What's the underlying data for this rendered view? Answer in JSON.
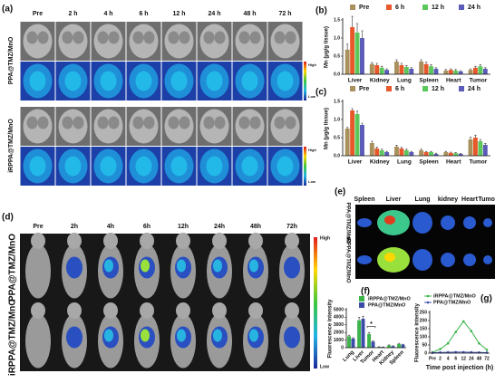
{
  "panel_a": {
    "label": "(a)",
    "columns": [
      "Pre",
      "2 h",
      "4 h",
      "6 h",
      "12 h",
      "24 h",
      "48 h",
      "72 h"
    ],
    "rows": [
      "PPA@TMZ/MnO",
      "iRPPA@TMZ/MnO"
    ],
    "scale_high": "High",
    "scale_low": "Low"
  },
  "panel_d": {
    "label": "(d)",
    "columns": [
      "Pre",
      "2h",
      "4h",
      "6h",
      "12h",
      "24h",
      "48h",
      "72h"
    ],
    "rows": [
      "PPA@TMZ/MnO",
      "iRPPA@TMZ/MnO"
    ],
    "scale_high": "High",
    "scale_low": "Low"
  },
  "panel_e": {
    "label": "(e)",
    "organs": [
      "Spleen",
      "Liver",
      "Lung",
      "kidney",
      "Heart",
      "Tumor"
    ],
    "rows": [
      "PPA@TMZ/MnO",
      "iRPPA@TMZ/MnO"
    ]
  },
  "chart_data": [
    {
      "type": "bar",
      "label": "(b)",
      "y_label": "Mn (μg/g tissue)",
      "legend": "top",
      "categories": [
        "Liver",
        "Kidney",
        "Lung",
        "Spleen",
        "Heart",
        "Tumor"
      ],
      "series": [
        {
          "name": "Pre",
          "color": "#a8915c",
          "values": [
            0.68,
            0.28,
            0.35,
            0.35,
            0.1,
            0.12
          ],
          "errors": [
            0.15,
            0.04,
            0.05,
            0.05,
            0.03,
            0.03
          ]
        },
        {
          "name": "6 h",
          "color": "#e8582a",
          "values": [
            1.3,
            0.25,
            0.25,
            0.28,
            0.12,
            0.18
          ],
          "errors": [
            0.3,
            0.05,
            0.05,
            0.05,
            0.03,
            0.04
          ]
        },
        {
          "name": "12 h",
          "color": "#5cc85c",
          "values": [
            1.15,
            0.18,
            0.2,
            0.22,
            0.1,
            0.22
          ],
          "errors": [
            0.25,
            0.04,
            0.04,
            0.04,
            0.03,
            0.04
          ]
        },
        {
          "name": "24 h",
          "color": "#5b5bb8",
          "values": [
            1.0,
            0.12,
            0.15,
            0.15,
            0.08,
            0.15
          ],
          "errors": [
            0.2,
            0.03,
            0.03,
            0.03,
            0.02,
            0.03
          ]
        }
      ],
      "ylim": [
        0,
        1.5
      ],
      "yticks": [
        {
          "value": 0,
          "label": "0.0"
        },
        0.5,
        {
          "value": 1,
          "label": "1.0"
        },
        1.5
      ]
    },
    {
      "type": "bar",
      "label": "(c)",
      "y_label": "Mn (μg/g tissue)",
      "legend": "top",
      "categories": [
        "Liver",
        "Kidney",
        "Lung",
        "Spleen",
        "Heart",
        "Tumor"
      ],
      "series": [
        {
          "name": "Pre",
          "color": "#a8915c",
          "values": [
            0.75,
            0.35,
            0.25,
            0.15,
            0.1,
            0.45
          ],
          "errors": [
            0.03,
            0.05,
            0.04,
            0.03,
            0.02,
            0.06
          ]
        },
        {
          "name": "6 h",
          "color": "#e8582a",
          "values": [
            1.25,
            0.2,
            0.2,
            0.1,
            0.08,
            0.5
          ],
          "errors": [
            0.05,
            0.04,
            0.03,
            0.02,
            0.02,
            0.07
          ]
        },
        {
          "name": "12 h",
          "color": "#5cc85c",
          "values": [
            1.15,
            0.15,
            0.15,
            0.1,
            0.07,
            0.4
          ],
          "errors": [
            0.08,
            0.03,
            0.03,
            0.02,
            0.02,
            0.05
          ]
        },
        {
          "name": "24 h",
          "color": "#5b5bb8",
          "values": [
            0.85,
            0.1,
            0.1,
            0.05,
            0.05,
            0.3
          ],
          "errors": [
            0.05,
            0.02,
            0.02,
            0.02,
            0.01,
            0.04
          ]
        }
      ],
      "ylim": [
        0,
        1.5
      ],
      "yticks": [
        {
          "value": 0,
          "label": "0.0"
        },
        0.5,
        {
          "value": 1,
          "label": "1.0"
        },
        1.5
      ]
    },
    {
      "type": "bar",
      "label": "(f)",
      "y_label": "Fluorescence intensity",
      "legend": "upper left",
      "categories": [
        "Lung",
        "Liver",
        "Tumor",
        "Heart",
        "Kidney",
        "Spleen"
      ],
      "series": [
        {
          "name": "iRPPA@TMZ/MnO",
          "color": "#3cb44b",
          "values": [
            1500,
            3600,
            1800,
            100,
            300,
            500
          ],
          "errors": [
            150,
            400,
            200,
            30,
            60,
            80
          ]
        },
        {
          "name": "PPA@TMZ/MnO",
          "color": "#3b4ba8",
          "values": [
            1200,
            3800,
            800,
            80,
            200,
            400
          ],
          "errors": [
            120,
            350,
            100,
            20,
            40,
            60
          ]
        }
      ],
      "annotation": "*",
      "ylim": [
        0,
        5000
      ],
      "yticks": [
        0,
        1000,
        2000,
        3000,
        4000,
        5000
      ]
    },
    {
      "type": "line",
      "label": "(g)",
      "y_label": "Fluorescence intensity",
      "x_label": "Time post injection (h)",
      "legend": "top",
      "categories": [
        "Pre",
        "2",
        "4",
        "6",
        "12",
        "24",
        "48",
        "72"
      ],
      "series": [
        {
          "name": "iRPPA@TMZ/MnO",
          "color": "#3cb44b",
          "values": [
            5,
            25,
            60,
            130,
            195,
            135,
            60,
            20
          ]
        },
        {
          "name": "PPA@TMZ/MnO",
          "color": "#3b4ba8",
          "values": [
            2,
            4,
            5,
            6,
            6,
            5,
            4,
            3
          ]
        }
      ],
      "ylim": [
        0,
        250
      ],
      "yticks": [
        0,
        50,
        100,
        150,
        200,
        250
      ]
    }
  ]
}
